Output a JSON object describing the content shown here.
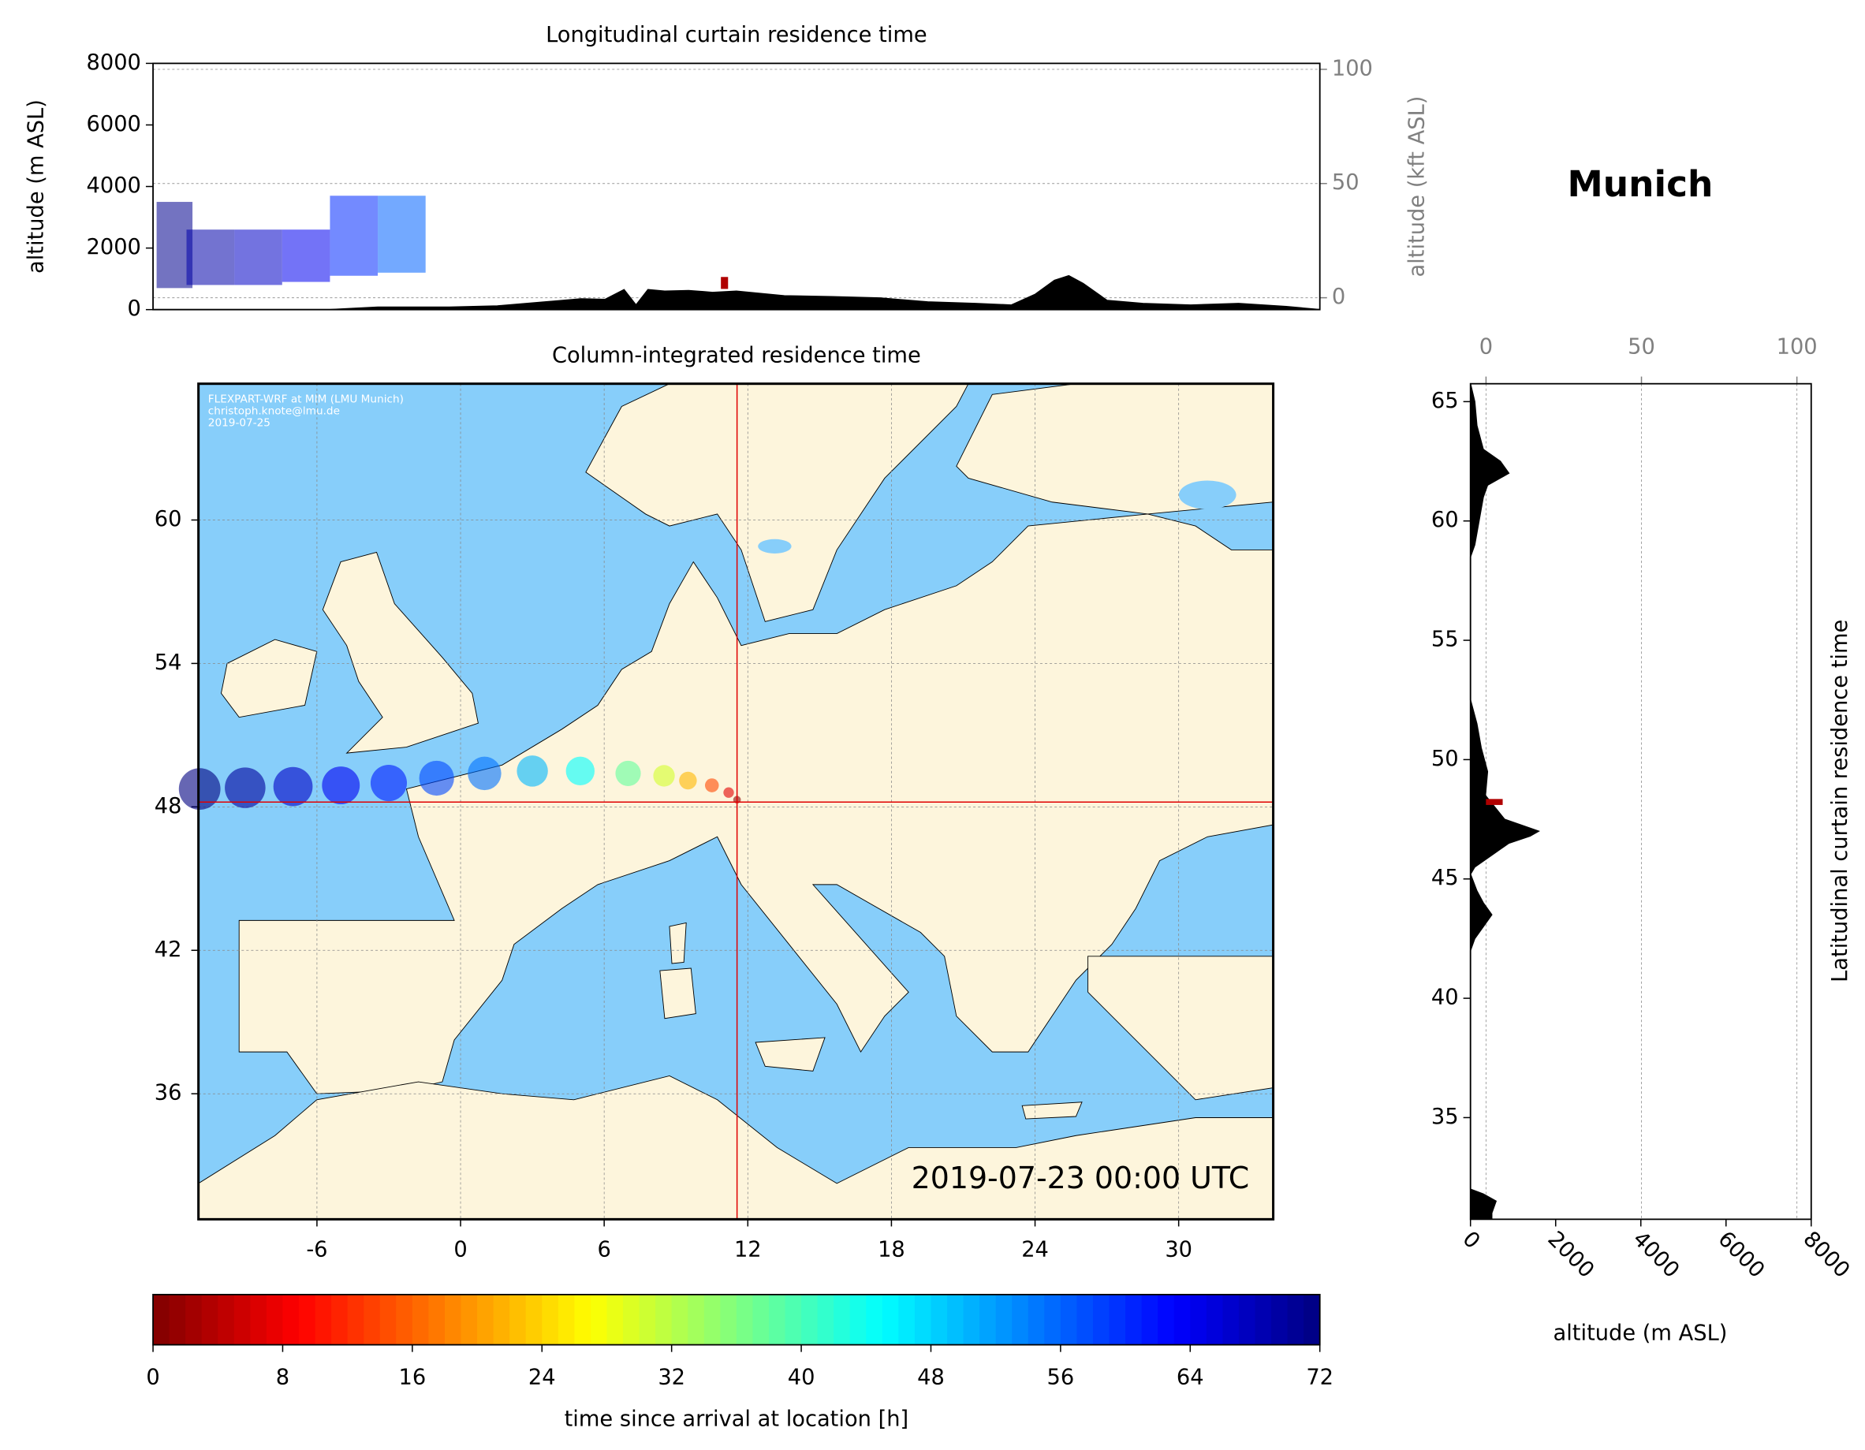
{
  "chart_data": [
    {
      "type": "curtain-lon",
      "title": "Longitudinal curtain residence time",
      "ylabel": "altitude (m ASL)",
      "y2label": "altitude (kft ASL)",
      "x": [
        -12.4,
        -10.5,
        -8,
        -5,
        -3,
        0,
        2,
        4,
        5.5,
        6.5,
        7.3,
        7.8,
        8.3,
        9,
        10,
        11,
        12,
        14,
        16,
        18,
        20,
        22,
        23.5,
        24.5,
        25.3,
        25.9,
        26.5,
        27.5,
        29,
        31,
        33,
        35,
        36.4
      ],
      "values": [
        0,
        0,
        0,
        0,
        80,
        80,
        120,
        250,
        350,
        330,
        650,
        150,
        650,
        600,
        620,
        560,
        600,
        450,
        420,
        380,
        250,
        200,
        150,
        500,
        950,
        1100,
        850,
        300,
        200,
        150,
        200,
        100,
        0
      ],
      "color": "#000000",
      "xlim": [
        -12.4,
        36.4
      ],
      "ylim": [
        0,
        8000
      ],
      "yticks": [
        0,
        2000,
        4000,
        6000,
        8000
      ],
      "y2lim": [
        -5.2,
        102.6
      ],
      "y2ticks": [
        0,
        50,
        100
      ],
      "y2color": "#808080",
      "grid": true,
      "plume": {
        "lon": [
          -11.5,
          -10,
          -8,
          -6,
          -4,
          -2
        ],
        "bottom": [
          700,
          800,
          800,
          900,
          1100,
          1200
        ],
        "top": [
          3500,
          2600,
          2600,
          2600,
          3700,
          3700
        ],
        "hours": [
          71,
          69,
          67,
          64,
          60,
          56
        ]
      },
      "release": {
        "lon": 11.5,
        "altitude": 750
      }
    },
    {
      "type": "map",
      "title": "Column-integrated residence time",
      "xlim": [
        -10.95,
        33.95
      ],
      "ylim": [
        30.75,
        65.7
      ],
      "xticks": [
        -6,
        0,
        6,
        12,
        18,
        24,
        30
      ],
      "yticks": [
        36,
        42,
        48,
        54,
        60
      ],
      "grid": true,
      "credits": [
        "FLEXPART-WRF at MIM (LMU Munich)",
        "christoph.knote@lmu.de",
        "2019-07-25"
      ],
      "timestamp": "2019-07-23 00:00 UTC",
      "location": {
        "name": "Munich",
        "lon": 11.55,
        "lat": 48.2
      },
      "plume": {
        "lon": [
          -10.9,
          -9,
          -7,
          -5,
          -3,
          -1,
          1,
          3,
          5,
          7,
          8.5,
          9.5,
          10.5,
          11.2,
          11.55
        ],
        "lat": [
          48.75,
          48.8,
          48.85,
          48.9,
          49.0,
          49.2,
          49.4,
          49.5,
          49.5,
          49.4,
          49.3,
          49.1,
          48.9,
          48.6,
          48.3
        ],
        "hours": [
          72,
          70,
          67,
          64,
          61,
          58,
          55,
          50,
          45,
          38,
          30,
          22,
          14,
          7,
          1
        ]
      }
    },
    {
      "type": "curtain-lat",
      "ylabel": "Latitudinal curtain residence time",
      "xlabel": "altitude (m ASL)",
      "y": [
        65.75,
        65,
        64,
        63,
        62.5,
        62,
        61.5,
        61,
        60,
        59,
        58.5,
        55,
        52.5,
        51.5,
        50.5,
        49.5,
        48.5,
        47.5,
        47,
        46.8,
        46.5,
        46,
        45.5,
        45.2,
        44.5,
        44,
        43.5,
        43,
        42.5,
        42,
        35,
        32,
        31.8,
        31.5,
        31,
        30.74
      ],
      "values": [
        0,
        100,
        150,
        300,
        700,
        900,
        400,
        300,
        200,
        100,
        0,
        0,
        0,
        150,
        250,
        400,
        350,
        800,
        1600,
        1400,
        900,
        500,
        100,
        0,
        150,
        300,
        500,
        300,
        100,
        0,
        0,
        0,
        300,
        600,
        500,
        500
      ],
      "color": "#000000",
      "xlim": [
        0,
        8000
      ],
      "xticks": [
        0,
        2000,
        4000,
        6000,
        8000
      ],
      "x2lim": [
        -5,
        104.6
      ],
      "x2ticks": [
        0,
        50,
        100
      ],
      "x2color": "#808080",
      "ylim": [
        30.74,
        65.75
      ],
      "yticks": [
        35,
        40,
        45,
        50,
        55,
        60,
        65
      ],
      "grid": true,
      "release": {
        "lat": 48.2,
        "altitude": 700
      }
    },
    {
      "type": "colorbar",
      "label": "time since arrival at location [h]",
      "clim": [
        0,
        72
      ],
      "ticks": [
        0,
        8,
        16,
        24,
        32,
        40,
        48,
        56,
        64,
        72
      ],
      "colormap": "jet_r"
    }
  ]
}
